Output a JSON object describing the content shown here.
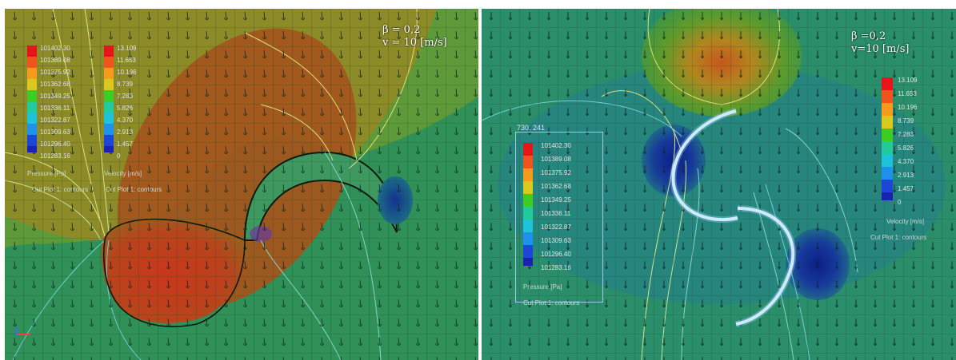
{
  "left_panel": {
    "beta": "β = 0,2",
    "velocity": "v = 10 [m/s]",
    "pressure_legend": {
      "ticks": [
        "101402.30",
        "101389.08",
        "101375.92",
        "101362.68",
        "101349.25",
        "101336.11",
        "101322.87",
        "101309.63",
        "101296.40",
        "101283.16"
      ],
      "title": "Pressure [Pa]",
      "plot_label": "Cut Plot 1: contours"
    },
    "velocity_legend": {
      "ticks": [
        "13.109",
        "11.653",
        "10.196",
        "8.739",
        "7.283",
        "5.826",
        "4.370",
        "2.913",
        "1.457",
        "0"
      ],
      "title": "Velocity [m/s]",
      "plot_label": "Cut Plot 1: contours"
    }
  },
  "right_panel": {
    "beta": "β =0,2",
    "velocity": "v=10 [m/s]",
    "box_label": "730, 241",
    "pressure_legend": {
      "ticks": [
        "101402.30",
        "101389.08",
        "101375.92",
        "101362.68",
        "101349.25",
        "101336.11",
        "101322.87",
        "101309.63",
        "101296.40",
        "101283.16"
      ],
      "title": "Pressure [Pa]",
      "plot_label": "Cut Plot 1: contours"
    },
    "velocity_legend": {
      "ticks": [
        "13.109",
        "11.653",
        "10.196",
        "8.739",
        "7.283",
        "5.826",
        "4.370",
        "2.913",
        "1.457",
        "0"
      ],
      "title": "Velocity [m/s]",
      "plot_label": "Cut Plot 1: contours"
    }
  },
  "colors": {
    "scale": [
      "#e8141a",
      "#f0541c",
      "#f59a1a",
      "#d9c91c",
      "#9ed21e",
      "#3ccc22",
      "#22c99a",
      "#1fc3d9",
      "#1e90ee",
      "#1c46d6",
      "#1a22b0"
    ],
    "field_base": "#2b8d5a",
    "high_pressure": "#c9361b",
    "low_pressure": "#12338f",
    "blade": "#e8f6ff"
  }
}
